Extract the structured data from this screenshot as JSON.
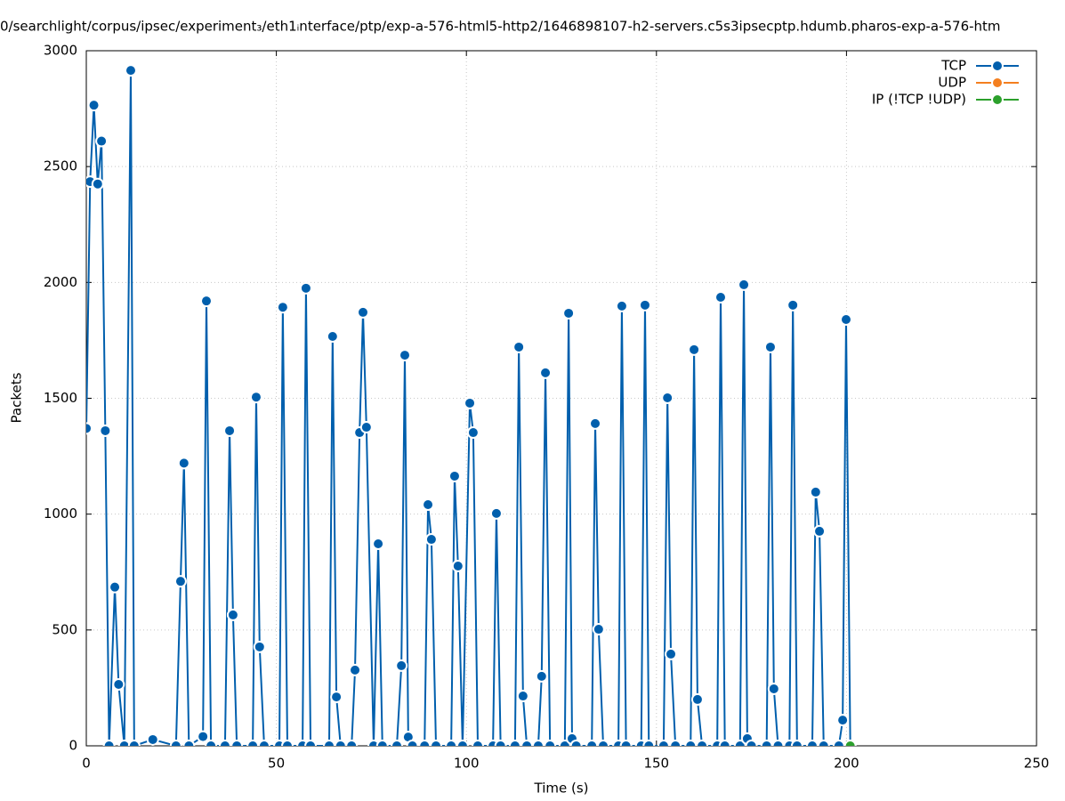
{
  "chart_data": {
    "type": "line",
    "title": "0/searchlight/corpus/ipsec/experiment₃/eth1ᵢnterface/ptp/exp-a-576-html5-http2/1646898107-h2-servers.c5s3ipsecptp.hdumb.pharos-exp-a-576-htm",
    "xlabel": "Time (s)",
    "ylabel": "Packets",
    "xlim": [
      0,
      250
    ],
    "xticks": [
      0,
      50,
      100,
      150,
      200,
      250
    ],
    "ylim": [
      0,
      3000
    ],
    "yticks": [
      0,
      500,
      1000,
      1500,
      2000,
      2500,
      3000
    ],
    "grid": true,
    "legend": "upper right",
    "series": [
      {
        "name": "TCP",
        "color": "#005fad",
        "x": [
          0,
          1,
          2,
          3,
          4,
          5,
          6,
          7.5,
          8.5,
          10,
          11.7,
          12.6,
          17.5,
          23.6,
          24.8,
          25.7,
          27,
          30.7,
          31.6,
          32.8,
          36.5,
          37.7,
          38.6,
          39.6,
          43.8,
          44.7,
          45.6,
          46.8,
          50.8,
          51.7,
          52.9,
          56.9,
          57.8,
          59,
          63.9,
          64.8,
          65.8,
          66.9,
          69.8,
          70.7,
          71.9,
          72.8,
          73.7,
          75.6,
          76.8,
          77.9,
          81.7,
          82.9,
          83.8,
          84.7,
          85.8,
          89,
          89.9,
          90.8,
          92,
          96,
          96.9,
          97.8,
          99,
          100.9,
          101.8,
          103,
          107,
          107.9,
          109,
          112.8,
          113.8,
          114.9,
          115.9,
          118.9,
          119.8,
          120.8,
          122,
          125.9,
          126.9,
          127.8,
          128.9,
          133,
          133.9,
          134.8,
          136,
          140,
          140.9,
          142,
          146,
          147,
          148,
          151.9,
          152.9,
          153.8,
          155,
          159,
          159.9,
          160.8,
          162,
          166,
          166.9,
          168,
          172,
          173,
          173.9,
          175,
          179,
          180,
          180.9,
          182,
          185,
          185.9,
          187,
          191,
          191.9,
          192.9,
          194,
          198,
          199,
          199.9,
          201
        ],
        "values": [
          1370,
          2435,
          2765,
          2425,
          2610,
          1360,
          0,
          685,
          265,
          0,
          2915,
          0,
          27,
          0,
          710,
          1220,
          0,
          40,
          1920,
          0,
          0,
          1360,
          565,
          0,
          0,
          1505,
          427,
          0,
          0,
          1893,
          0,
          0,
          1975,
          0,
          0,
          1767,
          211,
          0,
          0,
          327,
          1352,
          1871,
          1375,
          0,
          872,
          0,
          0,
          346,
          1686,
          38,
          0,
          0,
          1041,
          891,
          0,
          0,
          1164,
          776,
          0,
          1479,
          1352,
          0,
          0,
          1003,
          0,
          0,
          1721,
          215,
          0,
          0,
          300,
          1610,
          0,
          0,
          1867,
          31,
          0,
          0,
          1391,
          503,
          0,
          0,
          1898,
          0,
          0,
          1902,
          0,
          0,
          1502,
          396,
          0,
          0,
          1710,
          200,
          0,
          0,
          1936,
          0,
          0,
          1990,
          31,
          0,
          0,
          1721,
          246,
          0,
          0,
          1902,
          0,
          0,
          1095,
          926,
          0,
          0,
          111,
          1840,
          0
        ]
      },
      {
        "name": "UDP",
        "color": "#f47f1f",
        "x": [],
        "values": []
      },
      {
        "name": "IP (!TCP  !UDP)",
        "color": "#2ca02c",
        "x": [
          201
        ],
        "values": [
          0
        ]
      }
    ]
  }
}
